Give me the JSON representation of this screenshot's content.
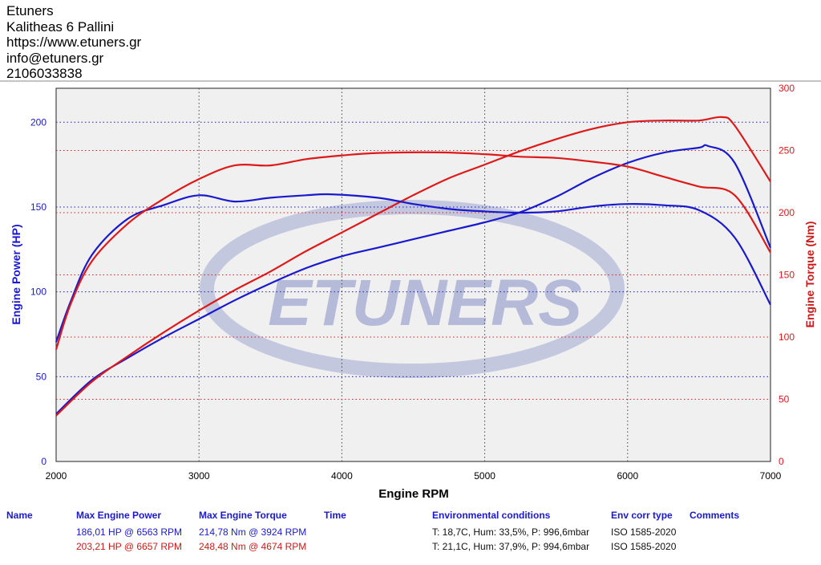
{
  "header": {
    "lines": [
      "Etuners",
      "Kalitheas 6 Pallini",
      "https://www.etuners.gr",
      "info@etuners.gr",
      "2106033838"
    ]
  },
  "watermark": {
    "text": "ETUNERS"
  },
  "colors": {
    "stock": "#1a1acc",
    "tuned": "#dd1a1a",
    "plot_bg": "#f0f0f0",
    "watermark": "#b4bad8"
  },
  "chart_data": {
    "type": "line",
    "title": "",
    "xlabel": "Engine RPM",
    "ylabel_left": "Engine Power (HP)",
    "ylabel_right": "Engine Torque (Nm)",
    "xlim": [
      2000,
      7000
    ],
    "ylim_left": [
      0,
      220
    ],
    "ylim_right": [
      0,
      300
    ],
    "x_ticks": [
      2000,
      3000,
      4000,
      5000,
      6000,
      7000
    ],
    "y_ticks_left": [
      0,
      50,
      100,
      150,
      200
    ],
    "y_ticks_right": [
      0,
      50,
      100,
      150,
      200,
      250,
      300
    ],
    "grid": true,
    "series": [
      {
        "axis": "left",
        "color": "#1a1acc",
        "x": [
          2000,
          2250,
          2500,
          2750,
          3000,
          3250,
          3500,
          3750,
          4000,
          4250,
          4500,
          4750,
          5000,
          5250,
          5500,
          5750,
          6000,
          6250,
          6500,
          6563,
          6750,
          7000
        ],
        "y": [
          28,
          48,
          61,
          73,
          84,
          95,
          105,
          114,
          121,
          126,
          131,
          136,
          141,
          147,
          156,
          167,
          176,
          182,
          185,
          186,
          176,
          126
        ]
      },
      {
        "axis": "left",
        "color": "#dd1a1a",
        "x": [
          2000,
          2250,
          2500,
          2750,
          3000,
          3250,
          3500,
          3750,
          4000,
          4250,
          4500,
          4750,
          5000,
          5250,
          5500,
          5750,
          6000,
          6250,
          6500,
          6657,
          6750,
          7000
        ],
        "y": [
          27,
          47,
          62,
          76,
          89,
          101,
          112,
          124,
          135,
          146,
          157,
          167,
          175,
          183,
          190,
          196,
          200,
          201,
          201,
          203,
          198,
          165
        ]
      },
      {
        "axis": "right",
        "color": "#1a1acc",
        "x": [
          2000,
          2100,
          2250,
          2500,
          2750,
          3000,
          3250,
          3500,
          3750,
          3924,
          4250,
          4500,
          4750,
          5000,
          5250,
          5500,
          5750,
          6000,
          6250,
          6500,
          6750,
          7000
        ],
        "y": [
          96,
          128,
          166,
          195,
          206,
          214,
          209,
          212,
          214,
          214.78,
          212,
          207,
          203,
          201,
          200,
          201,
          205,
          207,
          206,
          202,
          180,
          126
        ]
      },
      {
        "axis": "right",
        "color": "#dd1a1a",
        "x": [
          2000,
          2100,
          2250,
          2500,
          2750,
          3000,
          3250,
          3500,
          3750,
          4000,
          4250,
          4674,
          5000,
          5250,
          5500,
          5750,
          6000,
          6250,
          6500,
          6750,
          7000
        ],
        "y": [
          90,
          126,
          161,
          191,
          211,
          227,
          238,
          238,
          243,
          246,
          248,
          248.48,
          247,
          245,
          244,
          241,
          237,
          229,
          221,
          214,
          168
        ]
      }
    ],
    "results": {
      "headers": [
        "Name",
        "Max Engine Power",
        "Max Engine Torque",
        "Time",
        "Environmental conditions",
        "Env corr type",
        "Comments"
      ],
      "rows": [
        {
          "color": "#1a1acc",
          "name": "",
          "max_power": "186,01 HP @ 6563 RPM",
          "max_torque": "214,78 Nm @ 3924 RPM",
          "time": "",
          "environment": "T: 18,7C, Hum: 33,5%, P: 996,6mbar",
          "corr": "ISO 1585-2020",
          "comments": ""
        },
        {
          "color": "#dd1a1a",
          "name": "",
          "max_power": "203,21 HP @ 6657 RPM",
          "max_torque": "248,48 Nm @ 4674 RPM",
          "time": "",
          "environment": "T: 21,1C, Hum: 37,9%, P: 994,6mbar",
          "corr": "ISO 1585-2020",
          "comments": ""
        }
      ]
    }
  }
}
